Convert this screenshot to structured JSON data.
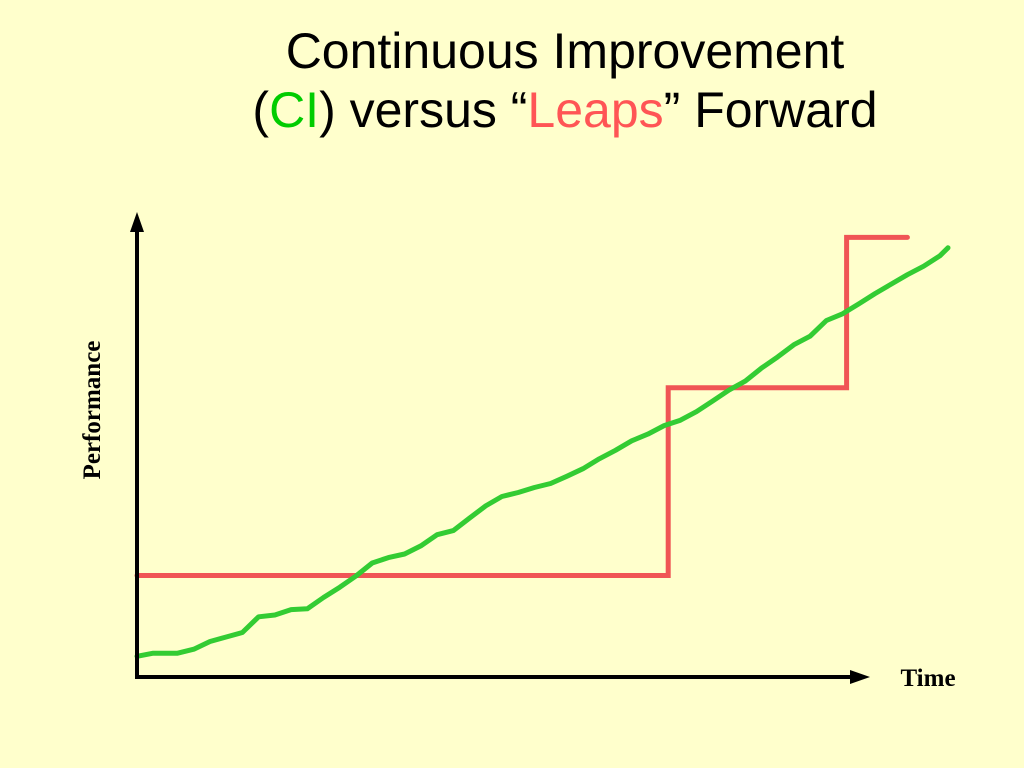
{
  "title": {
    "line1": "Continuous Improvement",
    "line2_part1": "(",
    "line2_ci": "CI",
    "line2_part2": ") versus “",
    "line2_leaps": "Leaps",
    "line2_part3": "” Forward"
  },
  "colors": {
    "background": "#ffffcc",
    "ci": "#00cc00",
    "leaps": "#ff5555",
    "ci_line": "#33cc33",
    "leaps_line": "#f05555",
    "axis": "#000000"
  },
  "chart_data": {
    "type": "line",
    "xlabel": "Time",
    "ylabel": "Performance",
    "xlim": [
      0,
      100
    ],
    "ylim": [
      0,
      100
    ],
    "grid": false,
    "series": [
      {
        "name": "CI",
        "x": [
          0,
          2,
          5,
          7,
          9,
          11,
          13,
          15,
          17,
          19,
          21,
          23,
          25,
          27,
          29,
          31,
          33,
          35,
          37,
          39,
          41,
          43,
          45,
          47,
          49,
          51,
          53,
          55,
          57,
          59,
          61,
          63,
          65,
          67,
          69,
          71,
          73,
          75,
          77,
          79,
          81,
          83,
          85,
          87,
          89,
          91,
          93,
          95,
          97,
          99,
          100
        ],
        "values": [
          4.6,
          5.3,
          5.3,
          6.2,
          7.9,
          8.9,
          9.9,
          13.4,
          13.8,
          15.0,
          15.2,
          17.7,
          20.0,
          22.5,
          25.4,
          26.6,
          27.4,
          29.2,
          31.7,
          32.6,
          35.4,
          38.1,
          40.2,
          41.1,
          42.2,
          43.1,
          44.7,
          46.4,
          48.6,
          50.5,
          52.6,
          54.1,
          56.0,
          57.2,
          59.1,
          61.5,
          63.9,
          65.9,
          68.8,
          71.3,
          74.0,
          75.9,
          79.4,
          80.9,
          83.1,
          85.4,
          87.5,
          89.6,
          91.5,
          93.8,
          95.6
        ]
      },
      {
        "name": "Leaps",
        "x": [
          0,
          65.5,
          65.5,
          87.5,
          87.5,
          95
        ],
        "values": [
          22.6,
          22.6,
          64.4,
          64.4,
          97.9,
          97.9
        ]
      }
    ]
  }
}
